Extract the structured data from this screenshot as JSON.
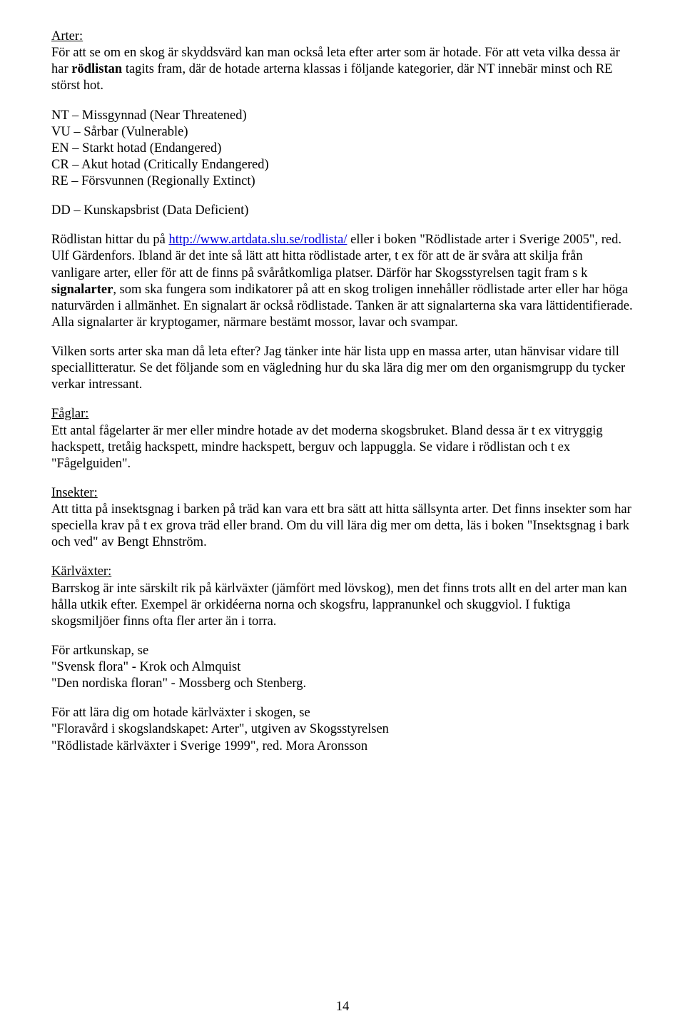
{
  "sections": {
    "arter": {
      "heading": "Arter:",
      "para1_a": "För att se om en skog är skyddsvärd kan man också leta efter arter som är hotade. För att veta vilka dessa är har ",
      "para1_bold": "rödlistan",
      "para1_b": " tagits fram, där de hotade arterna klassas i följande kategorier, där NT innebär minst och RE störst hot.",
      "categories": [
        "NT – Missgynnad (Near Threatened)",
        "VU – Sårbar (Vulnerable)",
        "EN – Starkt hotad (Endangered)",
        "CR – Akut hotad (Critically Endangered)",
        "RE – Försvunnen (Regionally Extinct)"
      ],
      "dd": "DD – Kunskapsbrist (Data Deficient)",
      "para2_a": "Rödlistan hittar du på ",
      "para2_link": "http://www.artdata.slu.se/rodlista/",
      "para2_b": " eller i boken \"Rödlistade arter i Sverige 2005\", red. Ulf Gärdenfors. Ibland är det inte så lätt att hitta rödlistade arter, t ex för att de är svåra att skilja från vanligare arter, eller för att de finns på svåråtkomliga platser. Därför har Skogsstyrelsen tagit fram s k ",
      "para2_bold": "signalarter",
      "para2_c": ", som ska fungera som indikatorer på att en skog troligen innehåller rödlistade arter eller har höga naturvärden i allmänhet. En signalart är också rödlistade. Tanken är att signalarterna ska vara lättidentifierade. Alla signalarter är kryptogamer, närmare bestämt mossor, lavar och svampar.",
      "para3": "Vilken sorts arter ska man då leta efter? Jag tänker inte här lista upp en massa arter, utan hänvisar vidare till speciallitteratur. Se det följande som en vägledning hur du ska lära dig mer om den organismgrupp du tycker verkar intressant."
    },
    "faglar": {
      "heading": "Fåglar:",
      "body": "Ett antal fågelarter är mer eller mindre hotade av det moderna skogsbruket. Bland dessa är t ex vitryggig hackspett, tretåig hackspett, mindre hackspett, berguv och lappuggla. Se vidare i rödlistan och t ex \"Fågelguiden\"."
    },
    "insekter": {
      "heading": "Insekter:",
      "body": "Att titta på insektsgnag i barken på träd kan vara ett bra sätt att hitta sällsynta arter. Det finns insekter som har speciella krav på t ex grova träd eller brand. Om du vill lära dig mer om detta, läs i boken \"Insektsgnag i bark och ved\" av Bengt Ehnström."
    },
    "karlvaxter": {
      "heading": "Kärlväxter:",
      "body": "Barrskog är inte särskilt rik på kärlväxter (jämfört med lövskog), men det finns trots allt en del arter man kan hålla utkik efter. Exempel är orkidéerna norna och skogsfru, lappranunkel och skuggviol. I fuktiga skogsmiljöer finns ofta fler arter än i torra.",
      "ref1_intro": "För artkunskap, se",
      "ref1_items": [
        "\"Svensk flora\" - Krok och Almquist",
        "\"Den nordiska floran\" - Mossberg och Stenberg."
      ],
      "ref2_intro": "För att lära dig om hotade kärlväxter i skogen, se",
      "ref2_items": [
        "\"Floravård i skogslandskapet: Arter\", utgiven av Skogsstyrelsen",
        "\"Rödlistade kärlväxter i Sverige 1999\", red. Mora Aronsson"
      ]
    }
  },
  "page_number": "14"
}
